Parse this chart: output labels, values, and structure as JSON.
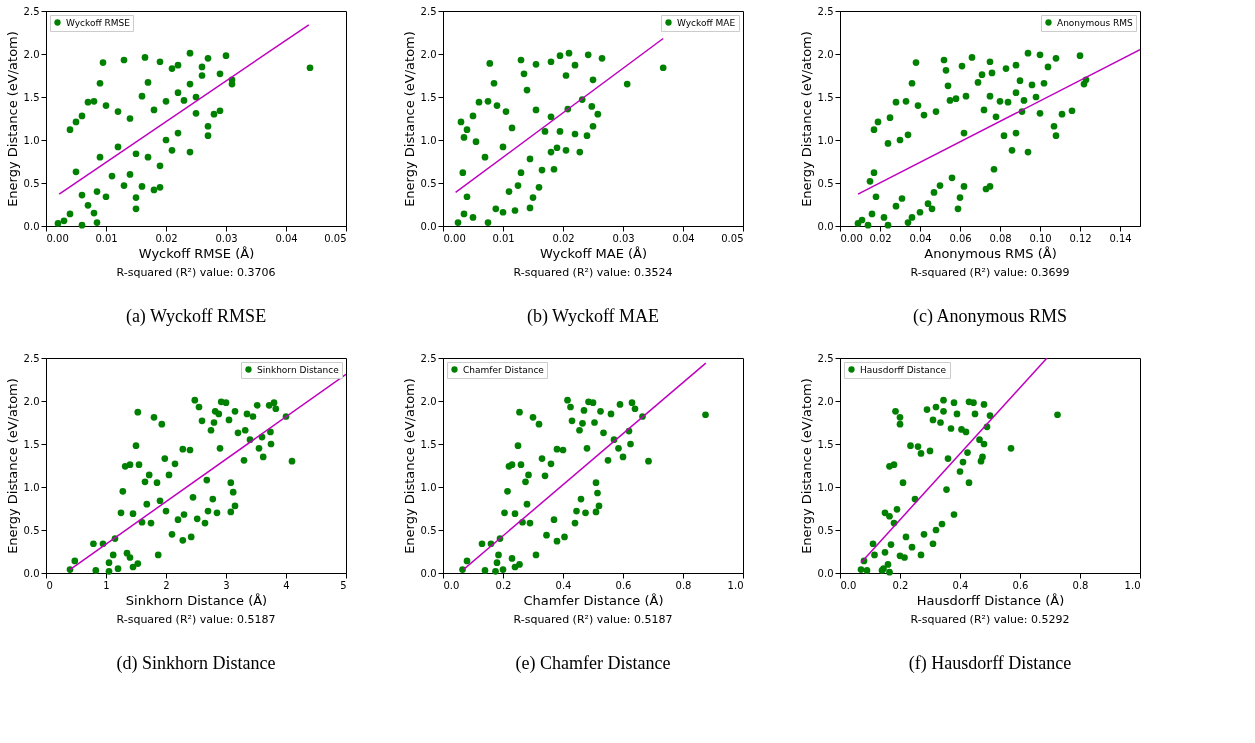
{
  "chart_data": [
    {
      "type": "scatter",
      "xlabel": "Wyckoff RMSE (Å)",
      "ylabel": "Energy Distance (eV/atom)",
      "annotations": [
        "R-squared (R²) value: 0.3706",
        "(a) Wyckoff RMSE"
      ],
      "xlim": [
        0,
        0.05
      ],
      "xticks": [
        {
          "value": 0,
          "label": "0.00"
        },
        0.01,
        0.02,
        0.03,
        0.04,
        0.05
      ],
      "ylim": [
        0,
        2.5
      ],
      "yticks": [
        {
          "value": 0,
          "label": "0.0"
        },
        0.5,
        {
          "value": 1,
          "label": "1.0"
        },
        1.5,
        {
          "value": 2,
          "label": "2.0"
        },
        2.5
      ],
      "grid": false,
      "legend": "top left",
      "marker": "circle",
      "series": [
        {
          "name": "Wyckoff RMSE",
          "color": "#008000",
          "x": [
            0.044,
            0.03,
            0.031,
            0.031,
            0.029,
            0.029,
            0.028,
            0.027,
            0.027,
            0.027,
            0.026,
            0.026,
            0.025,
            0.025,
            0.024,
            0.024,
            0.024,
            0.023,
            0.022,
            0.022,
            0.022,
            0.021,
            0.021,
            0.02,
            0.02,
            0.019,
            0.019,
            0.019,
            0.018,
            0.018,
            0.017,
            0.017,
            0.0165,
            0.016,
            0.016,
            0.015,
            0.015,
            0.015,
            0.014,
            0.014,
            0.013,
            0.013,
            0.012,
            0.012,
            0.011,
            0.01,
            0.01,
            0.0095,
            0.009,
            0.009,
            0.0085,
            0.008,
            0.008,
            0.007,
            0.007,
            0.006,
            0.006,
            0.005,
            0.005,
            0.004,
            0.004,
            0.003,
            0.002,
            0.006,
            0.0085
          ],
          "values": [
            1.84,
            1.98,
            1.65,
            1.7,
            1.77,
            1.34,
            1.3,
            1.16,
            1.05,
            1.95,
            1.85,
            1.75,
            1.31,
            1.5,
            1.65,
            2.01,
            0.86,
            1.46,
            1.87,
            1.55,
            1.08,
            0.88,
            1.83,
            1.45,
            1.0,
            1.91,
            0.7,
            0.45,
            1.35,
            0.42,
            0.8,
            1.67,
            1.96,
            1.51,
            0.46,
            0.84,
            0.33,
            0.2,
            0.6,
            1.25,
            1.93,
            0.47,
            0.92,
            1.33,
            0.58,
            1.4,
            0.34,
            1.9,
            1.66,
            0.8,
            0.4,
            1.45,
            0.15,
            1.44,
            0.24,
            1.28,
            0.36,
            1.21,
            0.63,
            1.12,
            0.14,
            0.06,
            0.03,
            0.01,
            0.04
          ]
        },
        {
          "type": "line",
          "marker": "none",
          "color": "#bf00bf",
          "x": [
            0.0022,
            0.0438
          ],
          "values": [
            0.37,
            2.34
          ]
        }
      ]
    },
    {
      "type": "scatter",
      "xlabel": "Wyckoff MAE (Å)",
      "ylabel": "Energy Distance (eV/atom)",
      "annotations": [
        "R-squared (R²) value: 0.3524",
        "(b) Wyckoff MAE"
      ],
      "xlim": [
        0,
        0.05
      ],
      "xticks": [
        {
          "value": 0,
          "label": "0.00"
        },
        0.01,
        0.02,
        0.03,
        0.04,
        0.05
      ],
      "ylim": [
        0,
        2.5
      ],
      "yticks": [
        {
          "value": 0,
          "label": "0.0"
        },
        0.5,
        {
          "value": 1,
          "label": "1.0"
        },
        1.5,
        {
          "value": 2,
          "label": "2.0"
        },
        2.5
      ],
      "grid": false,
      "legend": "top right",
      "marker": "circle",
      "series": [
        {
          "name": "Wyckoff MAE",
          "color": "#008000",
          "x": [
            0.0367,
            0.0307,
            0.0265,
            0.0258,
            0.025,
            0.025,
            0.0248,
            0.0242,
            0.024,
            0.0232,
            0.0228,
            0.022,
            0.022,
            0.021,
            0.0208,
            0.0205,
            0.0205,
            0.0195,
            0.0195,
            0.019,
            0.0185,
            0.018,
            0.018,
            0.018,
            0.017,
            0.0165,
            0.016,
            0.0155,
            0.0155,
            0.015,
            0.0145,
            0.0145,
            0.014,
            0.0135,
            0.013,
            0.013,
            0.0125,
            0.012,
            0.0115,
            0.011,
            0.0105,
            0.01,
            0.01,
            0.009,
            0.0088,
            0.0085,
            0.0078,
            0.0075,
            0.007,
            0.0075,
            0.006,
            0.0055,
            0.005,
            0.005,
            0.004,
            0.004,
            0.0035,
            0.003,
            0.0033,
            0.0035,
            0.0025
          ],
          "values": [
            1.84,
            1.65,
            1.95,
            1.3,
            1.7,
            1.16,
            1.39,
            1.99,
            1.05,
            1.47,
            0.86,
            1.87,
            1.07,
            2.01,
            1.36,
            1.75,
            0.88,
            1.98,
            1.1,
            0.91,
            0.66,
            1.91,
            1.27,
            0.86,
            1.1,
            0.65,
            0.45,
            1.88,
            1.35,
            0.33,
            0.21,
            0.78,
            1.58,
            1.77,
            1.93,
            0.62,
            0.47,
            0.18,
            1.14,
            0.4,
            1.33,
            0.92,
            0.16,
            1.4,
            0.2,
            1.66,
            1.89,
            1.45,
            0.8,
            0.04,
            1.44,
            0.98,
            1.28,
            0.1,
            1.12,
            0.34,
            1.03,
            1.21,
            0.62,
            0.14,
            0.04
          ]
        },
        {
          "type": "line",
          "marker": "none",
          "color": "#bf00bf",
          "x": [
            0.0021,
            0.0367
          ],
          "values": [
            0.39,
            2.18
          ]
        }
      ]
    },
    {
      "type": "scatter",
      "xlabel": "Anonymous RMS (Å)",
      "ylabel": "Energy Distance (eV/atom)",
      "annotations": [
        "R-squared (R²) value: 0.3699",
        "(c) Anonymous RMS"
      ],
      "xlim": [
        0,
        0.15
      ],
      "xticks": [
        {
          "value": 0,
          "label": "0.00"
        },
        0.02,
        0.04,
        0.06,
        0.08,
        {
          "value": 0.1,
          "label": "0.10"
        },
        0.12,
        0.14
      ],
      "ylim": [
        0,
        2.5
      ],
      "yticks": [
        {
          "value": 0,
          "label": "0.0"
        },
        0.5,
        {
          "value": 1,
          "label": "1.0"
        },
        1.5,
        {
          "value": 2,
          "label": "2.0"
        },
        2.5
      ],
      "grid": false,
      "legend": "top right",
      "marker": "circle",
      "series": [
        {
          "name": "Anonymous RMS",
          "color": "#008000",
          "x": [
            0.123,
            0.122,
            0.12,
            0.116,
            0.111,
            0.108,
            0.107,
            0.108,
            0.104,
            0.102,
            0.1,
            0.1,
            0.098,
            0.096,
            0.094,
            0.094,
            0.092,
            0.091,
            0.09,
            0.088,
            0.088,
            0.088,
            0.086,
            0.084,
            0.083,
            0.082,
            0.08,
            0.078,
            0.076,
            0.077,
            0.075,
            0.075,
            0.075,
            0.073,
            0.072,
            0.071,
            0.069,
            0.066,
            0.063,
            0.062,
            0.062,
            0.061,
            0.06,
            0.059,
            0.058,
            0.056,
            0.055,
            0.054,
            0.053,
            0.052,
            0.05,
            0.048,
            0.047,
            0.046,
            0.044,
            0.042,
            0.04,
            0.039,
            0.038,
            0.036,
            0.036,
            0.034,
            0.034,
            0.033,
            0.031,
            0.03,
            0.028,
            0.028,
            0.025,
            0.024,
            0.024,
            0.022,
            0.019,
            0.018,
            0.017,
            0.017,
            0.015,
            0.016,
            0.014,
            0.011,
            0.009
          ],
          "values": [
            1.7,
            1.65,
            1.98,
            1.34,
            1.3,
            1.95,
            1.16,
            1.05,
            1.85,
            1.66,
            1.99,
            1.31,
            1.5,
            1.64,
            2.01,
            0.86,
            1.46,
            1.33,
            1.69,
            1.87,
            1.55,
            1.08,
            0.88,
            1.44,
            1.83,
            1.05,
            1.45,
            1.27,
            1.78,
            0.66,
            1.91,
            1.51,
            0.46,
            0.43,
            1.35,
            1.76,
            1.67,
            1.96,
            1.51,
            1.08,
            0.46,
            1.86,
            0.33,
            0.2,
            1.48,
            0.56,
            1.46,
            1.63,
            1.81,
            1.93,
            0.47,
            1.33,
            0.39,
            0.2,
            0.26,
            1.29,
            0.16,
            1.4,
            1.9,
            1.66,
            0.1,
            1.06,
            0.04,
            1.45,
            0.32,
            1.0,
            1.44,
            0.23,
            1.26,
            0.96,
            0.01,
            0.1,
            1.21,
            0.34,
            1.12,
            0.62,
            0.52,
            0.14,
            0.01,
            0.07,
            0.03
          ]
        },
        {
          "type": "line",
          "marker": "none",
          "color": "#bf00bf",
          "x": [
            0.009,
            0.15
          ],
          "values": [
            0.37,
            2.05
          ]
        }
      ]
    },
    {
      "type": "scatter",
      "xlabel": "Sinkhorn Distance (Å)",
      "ylabel": "Energy Distance (eV/atom)",
      "annotations": [
        "R-squared (R²) value: 0.5187",
        "(d) Sinkhorn Distance"
      ],
      "xlim": [
        0,
        5
      ],
      "xticks": [
        0,
        1,
        2,
        3,
        4,
        5
      ],
      "ylim": [
        0,
        2.5
      ],
      "yticks": [
        {
          "value": 0,
          "label": "0.0"
        },
        0.5,
        {
          "value": 1,
          "label": "1.0"
        },
        1.5,
        {
          "value": 2,
          "label": "2.0"
        },
        2.5
      ],
      "grid": false,
      "legend": "top right",
      "marker": "circle",
      "series": [
        {
          "name": "Sinkhorn Distance",
          "color": "#008000",
          "x": [
            4.1,
            4.0,
            3.83,
            3.8,
            3.75,
            3.74,
            3.72,
            3.62,
            3.6,
            3.55,
            3.52,
            3.45,
            3.4,
            3.35,
            3.32,
            3.3,
            3.2,
            3.15,
            3.15,
            3.12,
            3.08,
            3.08,
            3.05,
            3.0,
            2.92,
            2.9,
            2.88,
            2.85,
            2.82,
            2.8,
            2.78,
            2.75,
            2.7,
            2.68,
            2.65,
            2.6,
            2.55,
            2.52,
            2.48,
            2.45,
            2.42,
            2.4,
            2.3,
            2.28,
            2.28,
            2.2,
            2.15,
            2.1,
            2.05,
            2.0,
            1.98,
            1.93,
            1.9,
            1.87,
            1.85,
            1.8,
            1.75,
            1.72,
            1.68,
            1.65,
            1.6,
            1.55,
            1.53,
            1.53,
            1.5,
            1.45,
            1.45,
            1.4,
            1.4,
            1.35,
            1.32,
            1.28,
            1.25,
            1.2,
            1.15,
            1.12,
            1.05,
            1.05,
            0.95,
            0.83,
            0.79,
            0.48,
            0.4
          ],
          "values": [
            1.3,
            1.82,
            1.91,
            1.98,
            1.5,
            1.64,
            1.95,
            1.35,
            1.58,
            1.45,
            1.95,
            1.82,
            1.55,
            1.85,
            1.66,
            1.31,
            1.63,
            1.88,
            0.78,
            0.94,
            0.71,
            1.05,
            1.78,
            1.98,
            1.99,
            1.45,
            1.85,
            0.7,
            1.88,
            1.75,
            0.86,
            1.66,
            0.72,
            1.08,
            0.58,
            1.77,
            1.93,
            0.63,
            2.01,
            0.88,
            0.42,
            1.43,
            0.68,
            0.38,
            1.44,
            0.62,
            1.27,
            0.45,
            1.14,
            0.72,
            1.33,
            1.73,
            0.84,
            0.21,
            1.05,
            1.81,
            0.58,
            1.14,
            0.8,
            1.06,
            0.59,
            1.26,
            1.87,
            0.11,
            1.48,
            0.69,
            0.07,
            1.26,
            0.18,
            0.23,
            1.24,
            0.95,
            0.7,
            0.05,
            0.4,
            0.21,
            0.12,
            0.02,
            0.34,
            0.03,
            0.34,
            0.14,
            0.04
          ]
        },
        {
          "type": "line",
          "marker": "none",
          "color": "#bf00bf",
          "x": [
            0.4,
            5.0
          ],
          "values": [
            0.04,
            2.31
          ]
        }
      ]
    },
    {
      "type": "scatter",
      "xlabel": "Chamfer Distance (Å)",
      "ylabel": "Energy Distance (eV/atom)",
      "annotations": [
        "R-squared (R²) value: 0.5187",
        "(e) Chamfer Distance"
      ],
      "xlim": [
        0,
        1
      ],
      "xticks": [
        {
          "value": 0,
          "label": "0.0"
        },
        0.2,
        0.4,
        0.6,
        0.8,
        {
          "value": 1,
          "label": "1.0"
        }
      ],
      "ylim": [
        0,
        2.5
      ],
      "yticks": [
        {
          "value": 0,
          "label": "0.0"
        },
        0.5,
        {
          "value": 1,
          "label": "1.0"
        },
        1.5,
        {
          "value": 2,
          "label": "2.0"
        },
        2.5
      ],
      "grid": false,
      "legend": "top left",
      "marker": "circle",
      "series": [
        {
          "name": "Chamfer Distance",
          "color": "#008000",
          "x": [
            0.875,
            0.685,
            0.665,
            0.64,
            0.63,
            0.625,
            0.62,
            0.6,
            0.59,
            0.585,
            0.57,
            0.56,
            0.55,
            0.535,
            0.525,
            0.52,
            0.515,
            0.51,
            0.51,
            0.505,
            0.5,
            0.485,
            0.48,
            0.475,
            0.47,
            0.465,
            0.46,
            0.455,
            0.445,
            0.44,
            0.43,
            0.425,
            0.415,
            0.405,
            0.4,
            0.38,
            0.38,
            0.37,
            0.36,
            0.345,
            0.34,
            0.33,
            0.32,
            0.31,
            0.3,
            0.29,
            0.285,
            0.28,
            0.275,
            0.265,
            0.26,
            0.255,
            0.255,
            0.25,
            0.24,
            0.24,
            0.23,
            0.23,
            0.22,
            0.215,
            0.205,
            0.2,
            0.19,
            0.185,
            0.18,
            0.175,
            0.16,
            0.14,
            0.13,
            0.08,
            0.065
          ],
          "values": [
            1.84,
            1.3,
            1.82,
            1.91,
            1.98,
            1.5,
            1.65,
            1.35,
            1.96,
            1.45,
            1.55,
            1.85,
            1.31,
            1.63,
            1.88,
            0.78,
            0.93,
            0.71,
            1.05,
            1.75,
            1.98,
            1.99,
            1.45,
            0.7,
            1.89,
            1.74,
            0.86,
            1.66,
            0.72,
            0.58,
            1.77,
            1.93,
            2.01,
            0.42,
            1.43,
            0.37,
            1.44,
            0.62,
            1.27,
            0.44,
            1.13,
            1.33,
            1.73,
            0.21,
            1.81,
            0.58,
            1.14,
            0.8,
            1.06,
            0.59,
            1.26,
            1.87,
            0.1,
            1.48,
            0.69,
            0.07,
            1.26,
            0.17,
            1.24,
            0.95,
            0.7,
            0.04,
            0.4,
            0.21,
            0.12,
            0.02,
            0.34,
            0.03,
            0.34,
            0.14,
            0.04
          ]
        },
        {
          "type": "line",
          "marker": "none",
          "color": "#bf00bf",
          "x": [
            0.068,
            0.876
          ],
          "values": [
            0.04,
            2.44
          ]
        }
      ]
    },
    {
      "type": "scatter",
      "xlabel": "Hausdorff Distance (Å)",
      "ylabel": "Energy Distance (eV/atom)",
      "annotations": [
        "R-squared (R²) value: 0.5292",
        "(f) Hausdorff Distance"
      ],
      "xlim": [
        0,
        1
      ],
      "xticks": [
        {
          "value": 0,
          "label": "0.0"
        },
        0.2,
        0.4,
        0.6,
        0.8,
        {
          "value": 1,
          "label": "1.0"
        }
      ],
      "ylim": [
        0,
        2.5
      ],
      "yticks": [
        {
          "value": 0,
          "label": "0.0"
        },
        0.5,
        {
          "value": 1,
          "label": "1.0"
        },
        1.5,
        {
          "value": 2,
          "label": "2.0"
        },
        2.5
      ],
      "grid": false,
      "legend": "top left",
      "marker": "circle",
      "series": [
        {
          "name": "Hausdorff Distance",
          "color": "#008000",
          "x": [
            0.725,
            0.57,
            0.5,
            0.49,
            0.48,
            0.48,
            0.475,
            0.47,
            0.465,
            0.45,
            0.445,
            0.43,
            0.43,
            0.425,
            0.42,
            0.41,
            0.405,
            0.4,
            0.39,
            0.38,
            0.38,
            0.37,
            0.36,
            0.355,
            0.345,
            0.345,
            0.34,
            0.335,
            0.32,
            0.32,
            0.31,
            0.31,
            0.3,
            0.29,
            0.28,
            0.27,
            0.27,
            0.26,
            0.25,
            0.24,
            0.235,
            0.22,
            0.215,
            0.21,
            0.2,
            0.2,
            0.2,
            0.19,
            0.185,
            0.18,
            0.18,
            0.17,
            0.165,
            0.165,
            0.16,
            0.15,
            0.15,
            0.145,
            0.14,
            0.165,
            0.11,
            0.115,
            0.09,
            0.08,
            0.07
          ],
          "values": [
            1.84,
            1.45,
            1.83,
            1.7,
            1.96,
            1.5,
            1.35,
            1.3,
            1.55,
            1.85,
            1.98,
            1.99,
            1.05,
            1.4,
            1.64,
            1.29,
            1.67,
            1.18,
            1.85,
            1.98,
            0.68,
            1.68,
            1.33,
            0.97,
            2.01,
            1.88,
            0.57,
            1.75,
            1.93,
            0.5,
            0.34,
            1.78,
            1.42,
            1.9,
            0.45,
            0.21,
            1.39,
            1.47,
            0.86,
            0.3,
            1.48,
            0.42,
            0.18,
            1.05,
            1.81,
            1.73,
            0.2,
            0.74,
            1.88,
            1.26,
            0.58,
            0.33,
            1.24,
            0.66,
            0.1,
            0.7,
            0.24,
            0.05,
            0.03,
            0.01,
            0.34,
            0.21,
            0.03,
            0.14,
            0.04
          ]
        },
        {
          "type": "line",
          "marker": "none",
          "color": "#bf00bf",
          "x": [
            0.07,
            0.69
          ],
          "values": [
            0.12,
            2.5
          ]
        }
      ]
    }
  ]
}
